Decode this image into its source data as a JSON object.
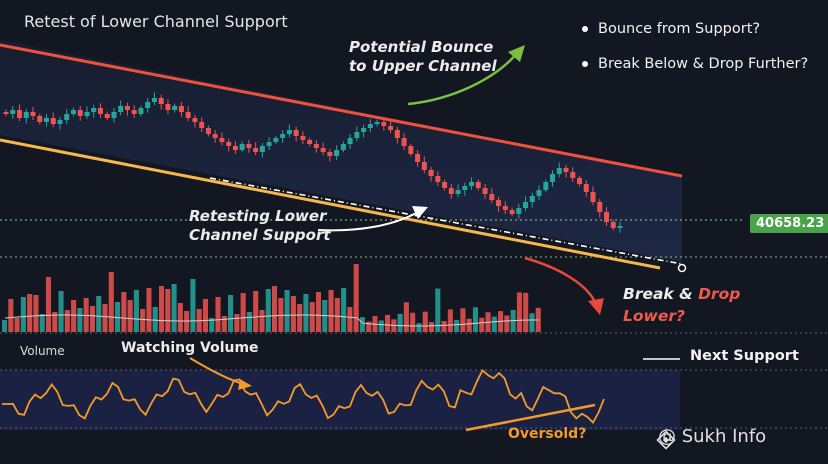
{
  "title": "Retest of Lower Channel Support",
  "scenarios": [
    "Bounce from Support?",
    "Break Below & Drop Further?"
  ],
  "annotations": {
    "bounce_line1": "Potential Bounce",
    "bounce_line2": "to Upper Channel",
    "retest_line1": "Retesting Lower",
    "retest_line2": "Channel Support",
    "break_word": "Break &",
    "drop_word": "Drop",
    "lower_word": "Lower?",
    "watching_volume": "Watching Volume",
    "oversold": "Oversold?",
    "next_support": "Next Support"
  },
  "volume_label": "Volume",
  "price_tag": "40658.23",
  "watermark": "@ Sukh Info",
  "colors": {
    "up": "#26a69a",
    "down": "#ef5350",
    "upper_channel": "#f0503c",
    "lower_channel": "#f6b84a",
    "osc": "#f29b2b",
    "arrow_green": "#7bc043",
    "arrow_red": "#e9483a"
  },
  "chart_data": {
    "type": "candlestick",
    "title": "Retest of Lower Channel Support",
    "current_price": 40658.23,
    "candles_close_relative": [
      0.78,
      0.8,
      0.76,
      0.79,
      0.77,
      0.74,
      0.76,
      0.73,
      0.75,
      0.78,
      0.8,
      0.77,
      0.79,
      0.81,
      0.78,
      0.76,
      0.79,
      0.82,
      0.8,
      0.78,
      0.81,
      0.84,
      0.86,
      0.83,
      0.8,
      0.82,
      0.79,
      0.76,
      0.74,
      0.71,
      0.68,
      0.66,
      0.64,
      0.62,
      0.6,
      0.63,
      0.61,
      0.59,
      0.62,
      0.64,
      0.66,
      0.68,
      0.7,
      0.67,
      0.65,
      0.63,
      0.61,
      0.59,
      0.57,
      0.6,
      0.63,
      0.66,
      0.69,
      0.71,
      0.73,
      0.74,
      0.72,
      0.7,
      0.66,
      0.62,
      0.58,
      0.54,
      0.5,
      0.47,
      0.44,
      0.41,
      0.38,
      0.4,
      0.42,
      0.44,
      0.41,
      0.38,
      0.35,
      0.32,
      0.3,
      0.28,
      0.31,
      0.34,
      0.37,
      0.4,
      0.44,
      0.48,
      0.51,
      0.49,
      0.46,
      0.43,
      0.39,
      0.34,
      0.29,
      0.24,
      0.21,
      0.22
    ]
  }
}
